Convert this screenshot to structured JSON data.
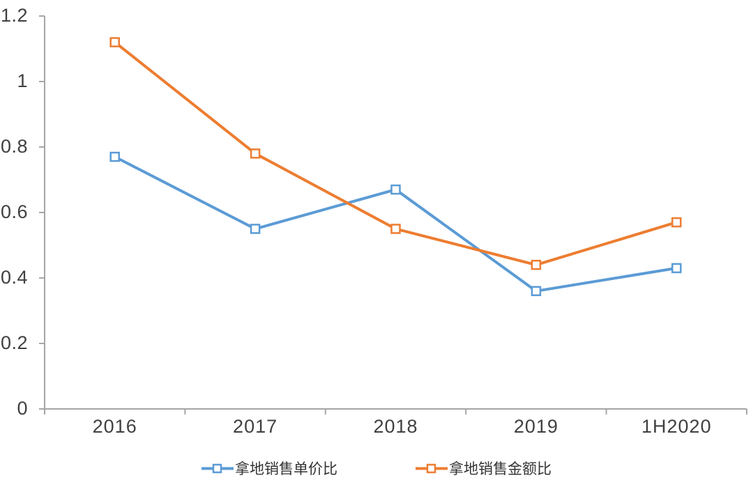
{
  "chart_data": {
    "type": "line",
    "categories": [
      "2016",
      "2017",
      "2018",
      "2019",
      "1H2020"
    ],
    "series": [
      {
        "name": "拿地销售单价比",
        "color": "#5B9BD5",
        "values": [
          0.77,
          0.55,
          0.67,
          0.36,
          0.43
        ]
      },
      {
        "name": "拿地销售金额比",
        "color": "#ED7D31",
        "values": [
          1.12,
          0.78,
          0.55,
          0.44,
          0.57
        ]
      }
    ],
    "title": "",
    "xlabel": "",
    "ylabel": "",
    "ylim": [
      0,
      1.2
    ],
    "yticks": [
      0,
      0.2,
      0.4,
      0.6,
      0.8,
      1,
      1.2
    ],
    "ytick_labels": [
      "0",
      "0.2",
      "0.4",
      "0.6",
      "0.8",
      "1",
      "1.2"
    ],
    "grid": false,
    "legend_position": "bottom",
    "marker": "open-square",
    "axis_color": "#A6A6A6",
    "label_color": "#404040"
  }
}
